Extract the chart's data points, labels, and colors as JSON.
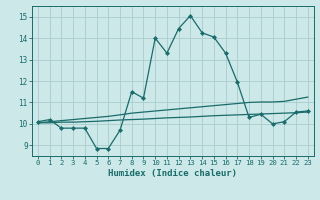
{
  "xlabel": "Humidex (Indice chaleur)",
  "bg_color": "#cce8e8",
  "grid_color": "#aacccc",
  "line_color": "#1a6b6b",
  "xlim": [
    -0.5,
    23.5
  ],
  "ylim": [
    8.5,
    15.5
  ],
  "yticks": [
    9,
    10,
    11,
    12,
    13,
    14,
    15
  ],
  "xticks": [
    0,
    1,
    2,
    3,
    4,
    5,
    6,
    7,
    8,
    9,
    10,
    11,
    12,
    13,
    14,
    15,
    16,
    17,
    18,
    19,
    20,
    21,
    22,
    23
  ],
  "line1_x": [
    0,
    1,
    2,
    3,
    4,
    5,
    6,
    7,
    8,
    9,
    10,
    11,
    12,
    13,
    14,
    15,
    16,
    17,
    18,
    19,
    20,
    21,
    22,
    23
  ],
  "line1_y": [
    10.1,
    10.2,
    9.8,
    9.8,
    9.8,
    8.85,
    8.85,
    9.7,
    11.5,
    11.2,
    14.0,
    13.3,
    14.45,
    15.05,
    14.25,
    14.05,
    13.3,
    11.95,
    10.3,
    10.45,
    10.0,
    10.1,
    10.55,
    10.6
  ],
  "line2_x": [
    0,
    1,
    2,
    3,
    4,
    5,
    6,
    7,
    8,
    9,
    10,
    11,
    12,
    13,
    14,
    15,
    16,
    17,
    18,
    19,
    20,
    21,
    22,
    23
  ],
  "line2_y": [
    10.05,
    10.05,
    10.08,
    10.08,
    10.1,
    10.12,
    10.15,
    10.18,
    10.2,
    10.22,
    10.25,
    10.28,
    10.3,
    10.32,
    10.35,
    10.38,
    10.4,
    10.42,
    10.44,
    10.46,
    10.48,
    10.5,
    10.52,
    10.55
  ],
  "line3_x": [
    0,
    1,
    2,
    3,
    4,
    5,
    6,
    7,
    8,
    9,
    10,
    11,
    12,
    13,
    14,
    15,
    16,
    17,
    18,
    19,
    20,
    21,
    22,
    23
  ],
  "line3_y": [
    10.05,
    10.1,
    10.15,
    10.2,
    10.25,
    10.3,
    10.35,
    10.42,
    10.5,
    10.55,
    10.6,
    10.65,
    10.7,
    10.75,
    10.8,
    10.85,
    10.9,
    10.95,
    11.0,
    11.02,
    11.02,
    11.05,
    11.15,
    11.25
  ]
}
